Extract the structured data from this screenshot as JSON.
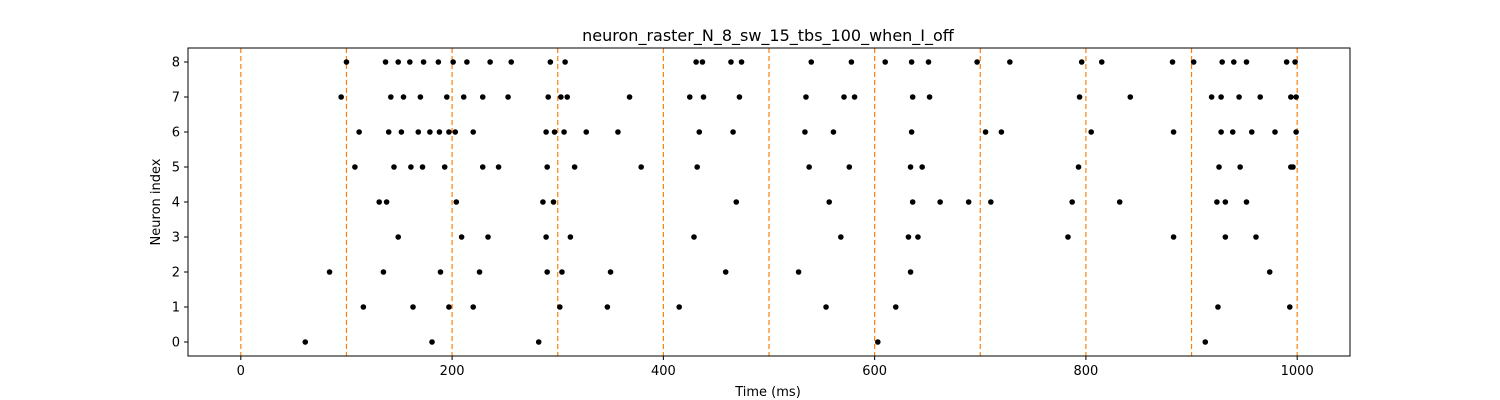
{
  "chart_data": {
    "type": "scatter",
    "title": "neuron_raster_N_8_sw_15_tbs_100_when_I_off",
    "xlabel": "Time (ms)",
    "ylabel": "Neuron index",
    "xlim": [
      -50,
      1050
    ],
    "ylim": [
      -0.4,
      8.4
    ],
    "xticks": [
      0,
      200,
      400,
      600,
      800,
      1000
    ],
    "yticks": [
      0,
      1,
      2,
      3,
      4,
      5,
      6,
      7,
      8
    ],
    "grid": false,
    "marker_color": "#000000",
    "vline_color": "#ff7f0e",
    "vlines": [
      0,
      100,
      200,
      300,
      400,
      500,
      600,
      700,
      800,
      900,
      1000
    ],
    "spikes": [
      {
        "neuron": 0,
        "times": [
          61,
          181,
          282,
          603,
          913
        ]
      },
      {
        "neuron": 1,
        "times": [
          116,
          163,
          197,
          220,
          302,
          347,
          415,
          554,
          620,
          925,
          993
        ]
      },
      {
        "neuron": 2,
        "times": [
          84,
          135,
          189,
          226,
          290,
          304,
          350,
          459,
          528,
          634,
          974
        ]
      },
      {
        "neuron": 3,
        "times": [
          149,
          209,
          234,
          289,
          312,
          429,
          568,
          632,
          641,
          783,
          883,
          932,
          961
        ]
      },
      {
        "neuron": 4,
        "times": [
          131,
          138,
          204,
          286,
          296,
          469,
          557,
          636,
          662,
          689,
          710,
          787,
          832,
          924,
          932,
          952
        ]
      },
      {
        "neuron": 5,
        "times": [
          108,
          145,
          161,
          172,
          193,
          229,
          244,
          290,
          316,
          379,
          432,
          538,
          576,
          634,
          645,
          793,
          926,
          946,
          994,
          996
        ]
      },
      {
        "neuron": 6,
        "times": [
          112,
          140,
          152,
          168,
          179,
          188,
          197,
          203,
          220,
          289,
          297,
          306,
          327,
          357,
          434,
          466,
          534,
          561,
          635,
          705,
          720,
          805,
          883,
          928,
          939,
          957,
          979,
          999
        ]
      },
      {
        "neuron": 7,
        "times": [
          95,
          142,
          154,
          170,
          195,
          211,
          229,
          253,
          291,
          303,
          309,
          368,
          425,
          438,
          472,
          535,
          571,
          581,
          636,
          652,
          794,
          842,
          919,
          928,
          945,
          965,
          994,
          999
        ]
      },
      {
        "neuron": 8,
        "times": [
          100,
          137,
          149,
          160,
          173,
          187,
          201,
          214,
          236,
          256,
          293,
          307,
          431,
          437,
          464,
          474,
          540,
          578,
          610,
          635,
          651,
          697,
          728,
          796,
          815,
          882,
          902,
          929,
          940,
          952,
          990,
          998
        ]
      }
    ]
  }
}
